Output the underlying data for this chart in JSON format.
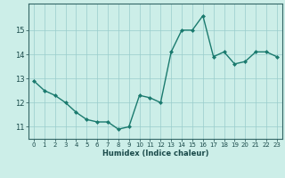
{
  "x": [
    0,
    1,
    2,
    3,
    4,
    5,
    6,
    7,
    8,
    9,
    10,
    11,
    12,
    13,
    14,
    15,
    16,
    17,
    18,
    19,
    20,
    21,
    22,
    23
  ],
  "y": [
    12.9,
    12.5,
    12.3,
    12.0,
    11.6,
    11.3,
    11.2,
    11.2,
    10.9,
    11.0,
    12.3,
    12.2,
    12.0,
    14.1,
    15.0,
    15.0,
    15.6,
    13.9,
    14.1,
    13.6,
    13.7,
    14.1,
    14.1,
    13.9
  ],
  "line_color": "#1a7a6e",
  "marker": "D",
  "marker_size": 2.0,
  "bg_color": "#cceee8",
  "grid_color": "#99cccc",
  "xlabel": "Humidex (Indice chaleur)",
  "xlim": [
    -0.5,
    23.5
  ],
  "ylim": [
    10.5,
    16.1
  ],
  "yticks": [
    11,
    12,
    13,
    14,
    15
  ],
  "xticks": [
    0,
    1,
    2,
    3,
    4,
    5,
    6,
    7,
    8,
    9,
    10,
    11,
    12,
    13,
    14,
    15,
    16,
    17,
    18,
    19,
    20,
    21,
    22,
    23
  ],
  "tick_color": "#1a4a4a",
  "spine_color": "#336666",
  "xlabel_fontsize": 6.0,
  "tick_fontsize": 5.0,
  "linewidth": 1.0
}
